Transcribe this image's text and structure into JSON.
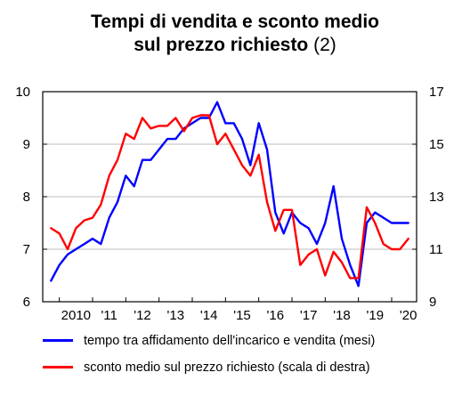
{
  "chart_data": {
    "type": "line",
    "title_line1": "Tempi di vendita e sconto medio",
    "title_line2_bold": "sul prezzo richiesto",
    "title_line2_note": "(2)",
    "x_tick_labels": [
      "2010",
      "'11",
      "'12",
      "'13",
      "'14",
      "'15",
      "'16",
      "'17",
      "'18",
      "'19",
      "'20"
    ],
    "y_left_ticks": [
      "6",
      "7",
      "8",
      "9",
      "10"
    ],
    "y_right_ticks": [
      "9",
      "11",
      "13",
      "15",
      "17"
    ],
    "y_left_range": [
      6,
      10
    ],
    "y_right_range": [
      9,
      17
    ],
    "x_range": [
      2009.5,
      2020.75
    ],
    "grid": "horizontal",
    "legend_position": "bottom",
    "series": [
      {
        "name": "tempo tra affidamento dell'incarico e vendita (mesi)",
        "axis": "left",
        "color": "#0000ff",
        "x": [
          2009.75,
          2010.0,
          2010.25,
          2010.5,
          2010.75,
          2011.0,
          2011.25,
          2011.5,
          2011.75,
          2012.0,
          2012.25,
          2012.5,
          2012.75,
          2013.0,
          2013.25,
          2013.5,
          2013.75,
          2014.0,
          2014.25,
          2014.5,
          2014.75,
          2015.0,
          2015.25,
          2015.5,
          2015.75,
          2016.0,
          2016.25,
          2016.5,
          2016.75,
          2017.0,
          2017.25,
          2017.5,
          2017.75,
          2018.0,
          2018.25,
          2018.5,
          2018.75,
          2019.0,
          2019.25,
          2019.5,
          2019.75,
          2020.0,
          2020.25,
          2020.5
        ],
        "values": [
          6.4,
          6.7,
          6.9,
          7.0,
          7.1,
          7.2,
          7.1,
          7.6,
          7.9,
          8.4,
          8.2,
          8.7,
          8.7,
          8.9,
          9.1,
          9.1,
          9.3,
          9.4,
          9.5,
          9.5,
          9.8,
          9.4,
          9.4,
          9.1,
          8.6,
          9.4,
          8.9,
          7.7,
          7.3,
          7.7,
          7.5,
          7.4,
          7.1,
          7.5,
          8.2,
          7.2,
          6.7,
          6.3,
          7.5,
          7.7,
          7.6,
          7.5,
          7.5,
          7.5
        ]
      },
      {
        "name": "sconto medio sul prezzo richiesto (scala di destra)",
        "axis": "right",
        "color": "#ff0000",
        "x": [
          2009.75,
          2010.0,
          2010.25,
          2010.5,
          2010.75,
          2011.0,
          2011.25,
          2011.5,
          2011.75,
          2012.0,
          2012.25,
          2012.5,
          2012.75,
          2013.0,
          2013.25,
          2013.5,
          2013.75,
          2014.0,
          2014.25,
          2014.5,
          2014.75,
          2015.0,
          2015.25,
          2015.5,
          2015.75,
          2016.0,
          2016.25,
          2016.5,
          2016.75,
          2017.0,
          2017.25,
          2017.5,
          2017.75,
          2018.0,
          2018.25,
          2018.5,
          2018.75,
          2019.0,
          2019.25,
          2019.5,
          2019.75,
          2020.0,
          2020.25,
          2020.5
        ],
        "values": [
          11.8,
          11.6,
          11.0,
          11.8,
          12.1,
          12.2,
          12.7,
          13.8,
          14.4,
          15.4,
          15.2,
          16.0,
          15.6,
          15.7,
          15.7,
          16.0,
          15.5,
          16.0,
          16.1,
          16.1,
          15.0,
          15.4,
          14.8,
          14.2,
          13.8,
          14.6,
          12.8,
          11.7,
          12.5,
          12.5,
          10.4,
          10.8,
          11.0,
          10.0,
          10.9,
          10.5,
          9.9,
          9.9,
          12.6,
          12.0,
          11.2,
          11.0,
          11.0,
          11.4
        ]
      }
    ]
  }
}
